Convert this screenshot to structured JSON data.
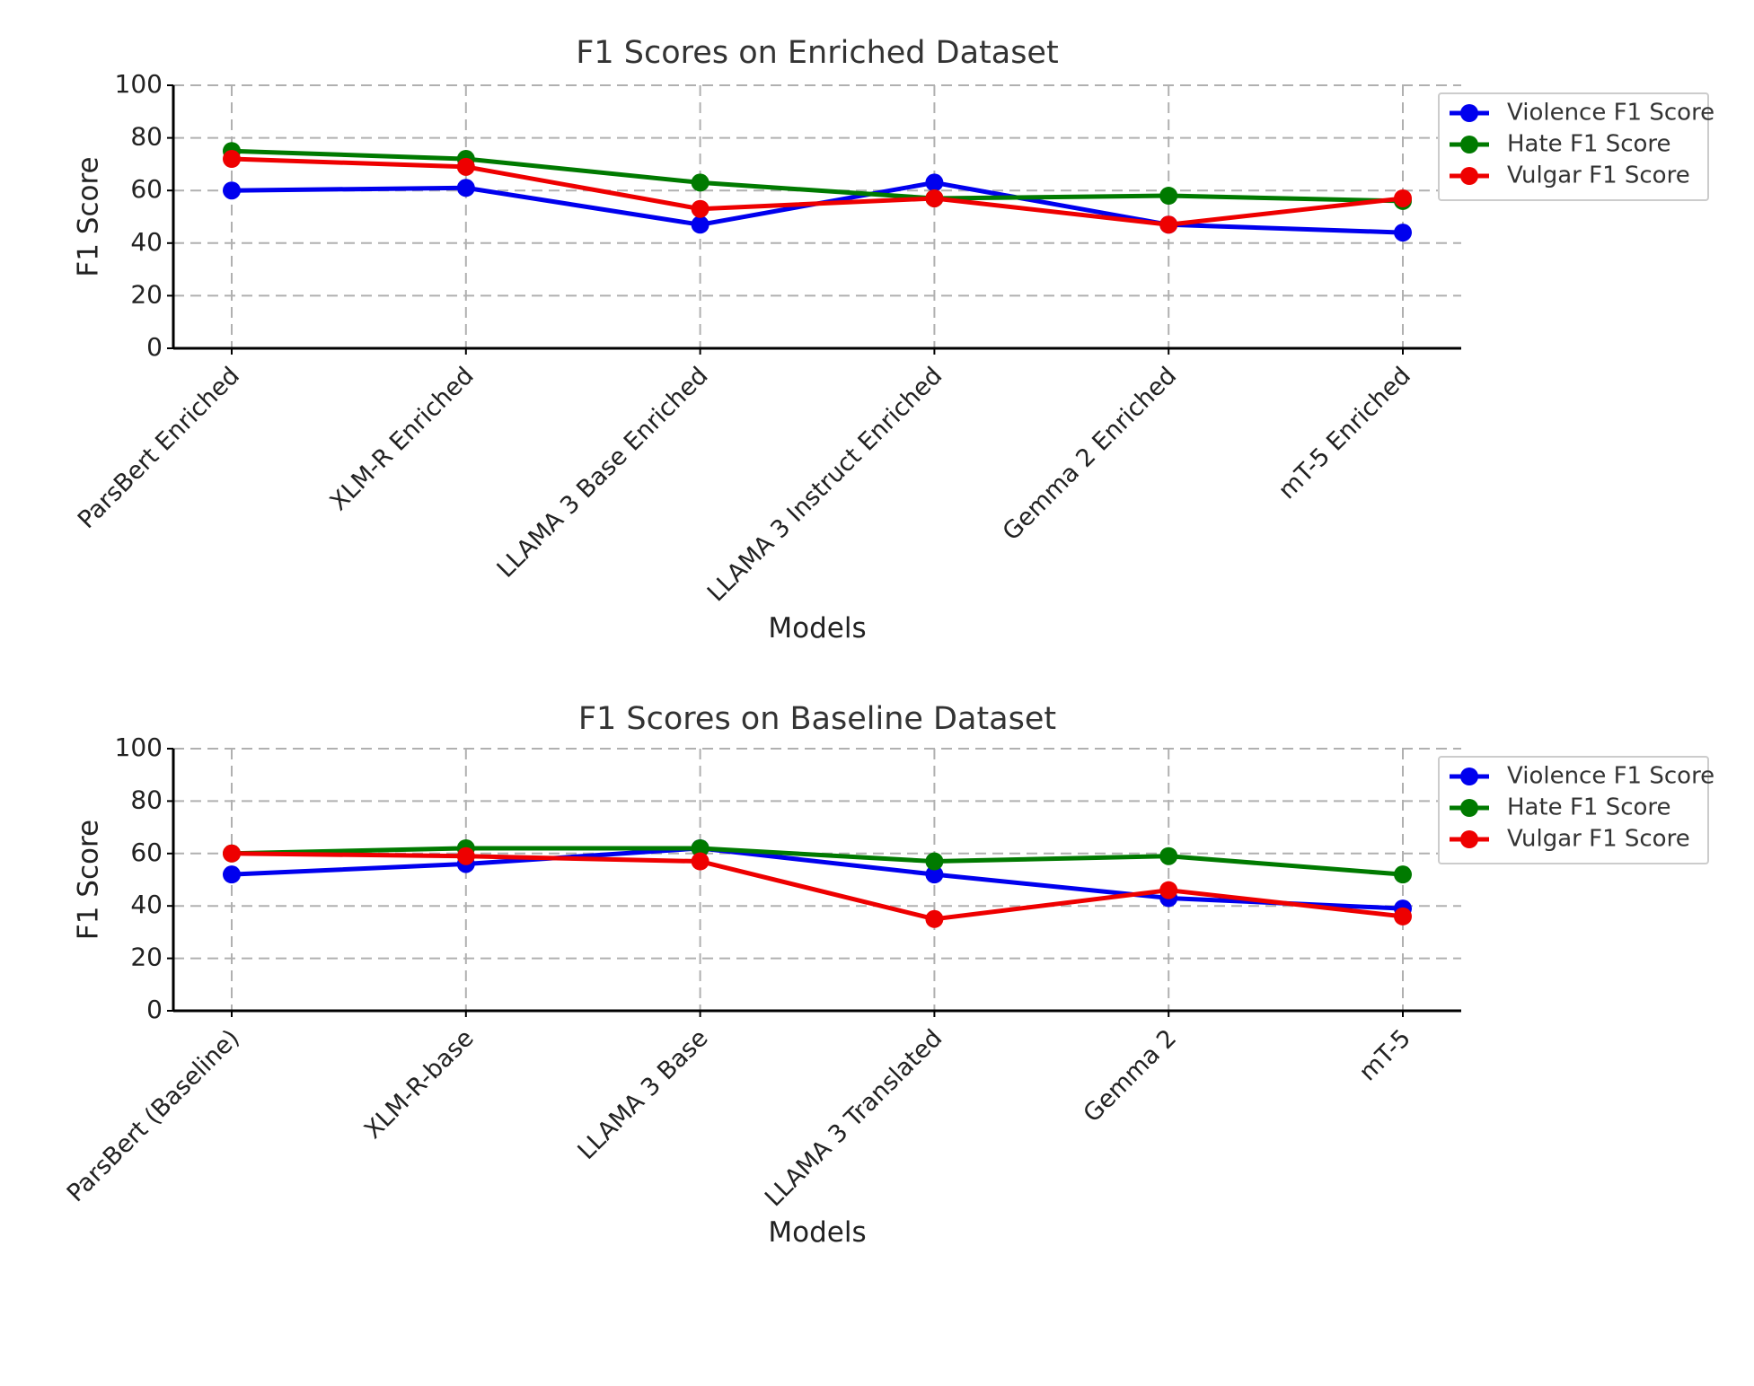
{
  "chart_data": [
    {
      "type": "line",
      "title": "F1 Scores on Enriched Dataset",
      "xlabel": "Models",
      "ylabel": "F1 Score",
      "ylim": [
        0,
        100
      ],
      "yticks": [
        0,
        20,
        40,
        60,
        80,
        100
      ],
      "grid": true,
      "legend_position": "top-right",
      "categories": [
        "ParsBert Enriched",
        "XLM-R Enriched",
        "LLAMA 3 Base Enriched",
        "LLAMA 3 Instruct Enriched",
        "Gemma 2 Enriched",
        "mT-5 Enriched"
      ],
      "series": [
        {
          "name": "Violence F1 Score",
          "color": "#0000ee",
          "values": [
            60,
            61,
            47,
            63,
            47,
            44
          ]
        },
        {
          "name": "Hate F1 Score",
          "color": "#007a00",
          "values": [
            75,
            72,
            63,
            57,
            58,
            56
          ]
        },
        {
          "name": "Vulgar F1 Score",
          "color": "#ee0000",
          "values": [
            72,
            69,
            53,
            57,
            47,
            57
          ]
        }
      ]
    },
    {
      "type": "line",
      "title": "F1 Scores on Baseline Dataset",
      "xlabel": "Models",
      "ylabel": "F1 Score",
      "ylim": [
        0,
        100
      ],
      "yticks": [
        0,
        20,
        40,
        60,
        80,
        100
      ],
      "grid": true,
      "legend_position": "top-right",
      "categories": [
        "ParsBert (Baseline)",
        "XLM-R-base",
        "LLAMA 3 Base",
        "LLAMA 3 Translated",
        "Gemma 2",
        "mT-5"
      ],
      "series": [
        {
          "name": "Violence F1 Score",
          "color": "#0000ee",
          "values": [
            52,
            56,
            62,
            52,
            43,
            39
          ]
        },
        {
          "name": "Hate F1 Score",
          "color": "#007a00",
          "values": [
            60,
            62,
            62,
            57,
            59,
            52
          ]
        },
        {
          "name": "Vulgar F1 Score",
          "color": "#ee0000",
          "values": [
            60,
            59,
            57,
            35,
            46,
            36
          ]
        }
      ]
    }
  ]
}
